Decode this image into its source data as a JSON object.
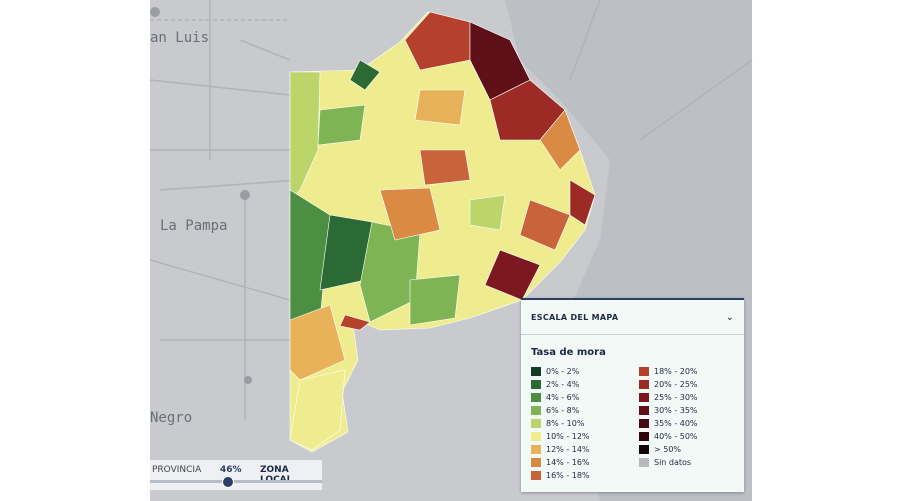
{
  "map_labels": [
    "an Luis",
    "La Pampa",
    "Negro"
  ],
  "legend": {
    "title": "ESCALA DEL MAPA",
    "subtitle": "Tasa de mora",
    "items": [
      {
        "label": "0% - 2%",
        "color": "#123d22"
      },
      {
        "label": "2% - 4%",
        "color": "#2b6a35"
      },
      {
        "label": "4% - 6%",
        "color": "#4d8f42"
      },
      {
        "label": "6% - 8%",
        "color": "#7fb454"
      },
      {
        "label": "8% - 10%",
        "color": "#bcd56b"
      },
      {
        "label": "10% - 12%",
        "color": "#eeec8f"
      },
      {
        "label": "12% - 14%",
        "color": "#e8b25a"
      },
      {
        "label": "14% - 16%",
        "color": "#d98a43"
      },
      {
        "label": "16% - 18%",
        "color": "#c9633a"
      },
      {
        "label": "18% - 20%",
        "color": "#b5402c"
      },
      {
        "label": "20% - 25%",
        "color": "#9c2a25"
      },
      {
        "label": "25% - 30%",
        "color": "#7d1820"
      },
      {
        "label": "30% - 35%",
        "color": "#5e0f18"
      },
      {
        "label": "35% - 40%",
        "color": "#460a12"
      },
      {
        "label": "40% - 50%",
        "color": "#2f060c"
      },
      {
        "label": "> 50%",
        "color": "#150306"
      },
      {
        "label": "Sin datos",
        "color": "#b7b9bd"
      }
    ]
  },
  "slider": {
    "left": "PROVINCIA",
    "value": "46%",
    "right": "ZONA LOCAL"
  }
}
